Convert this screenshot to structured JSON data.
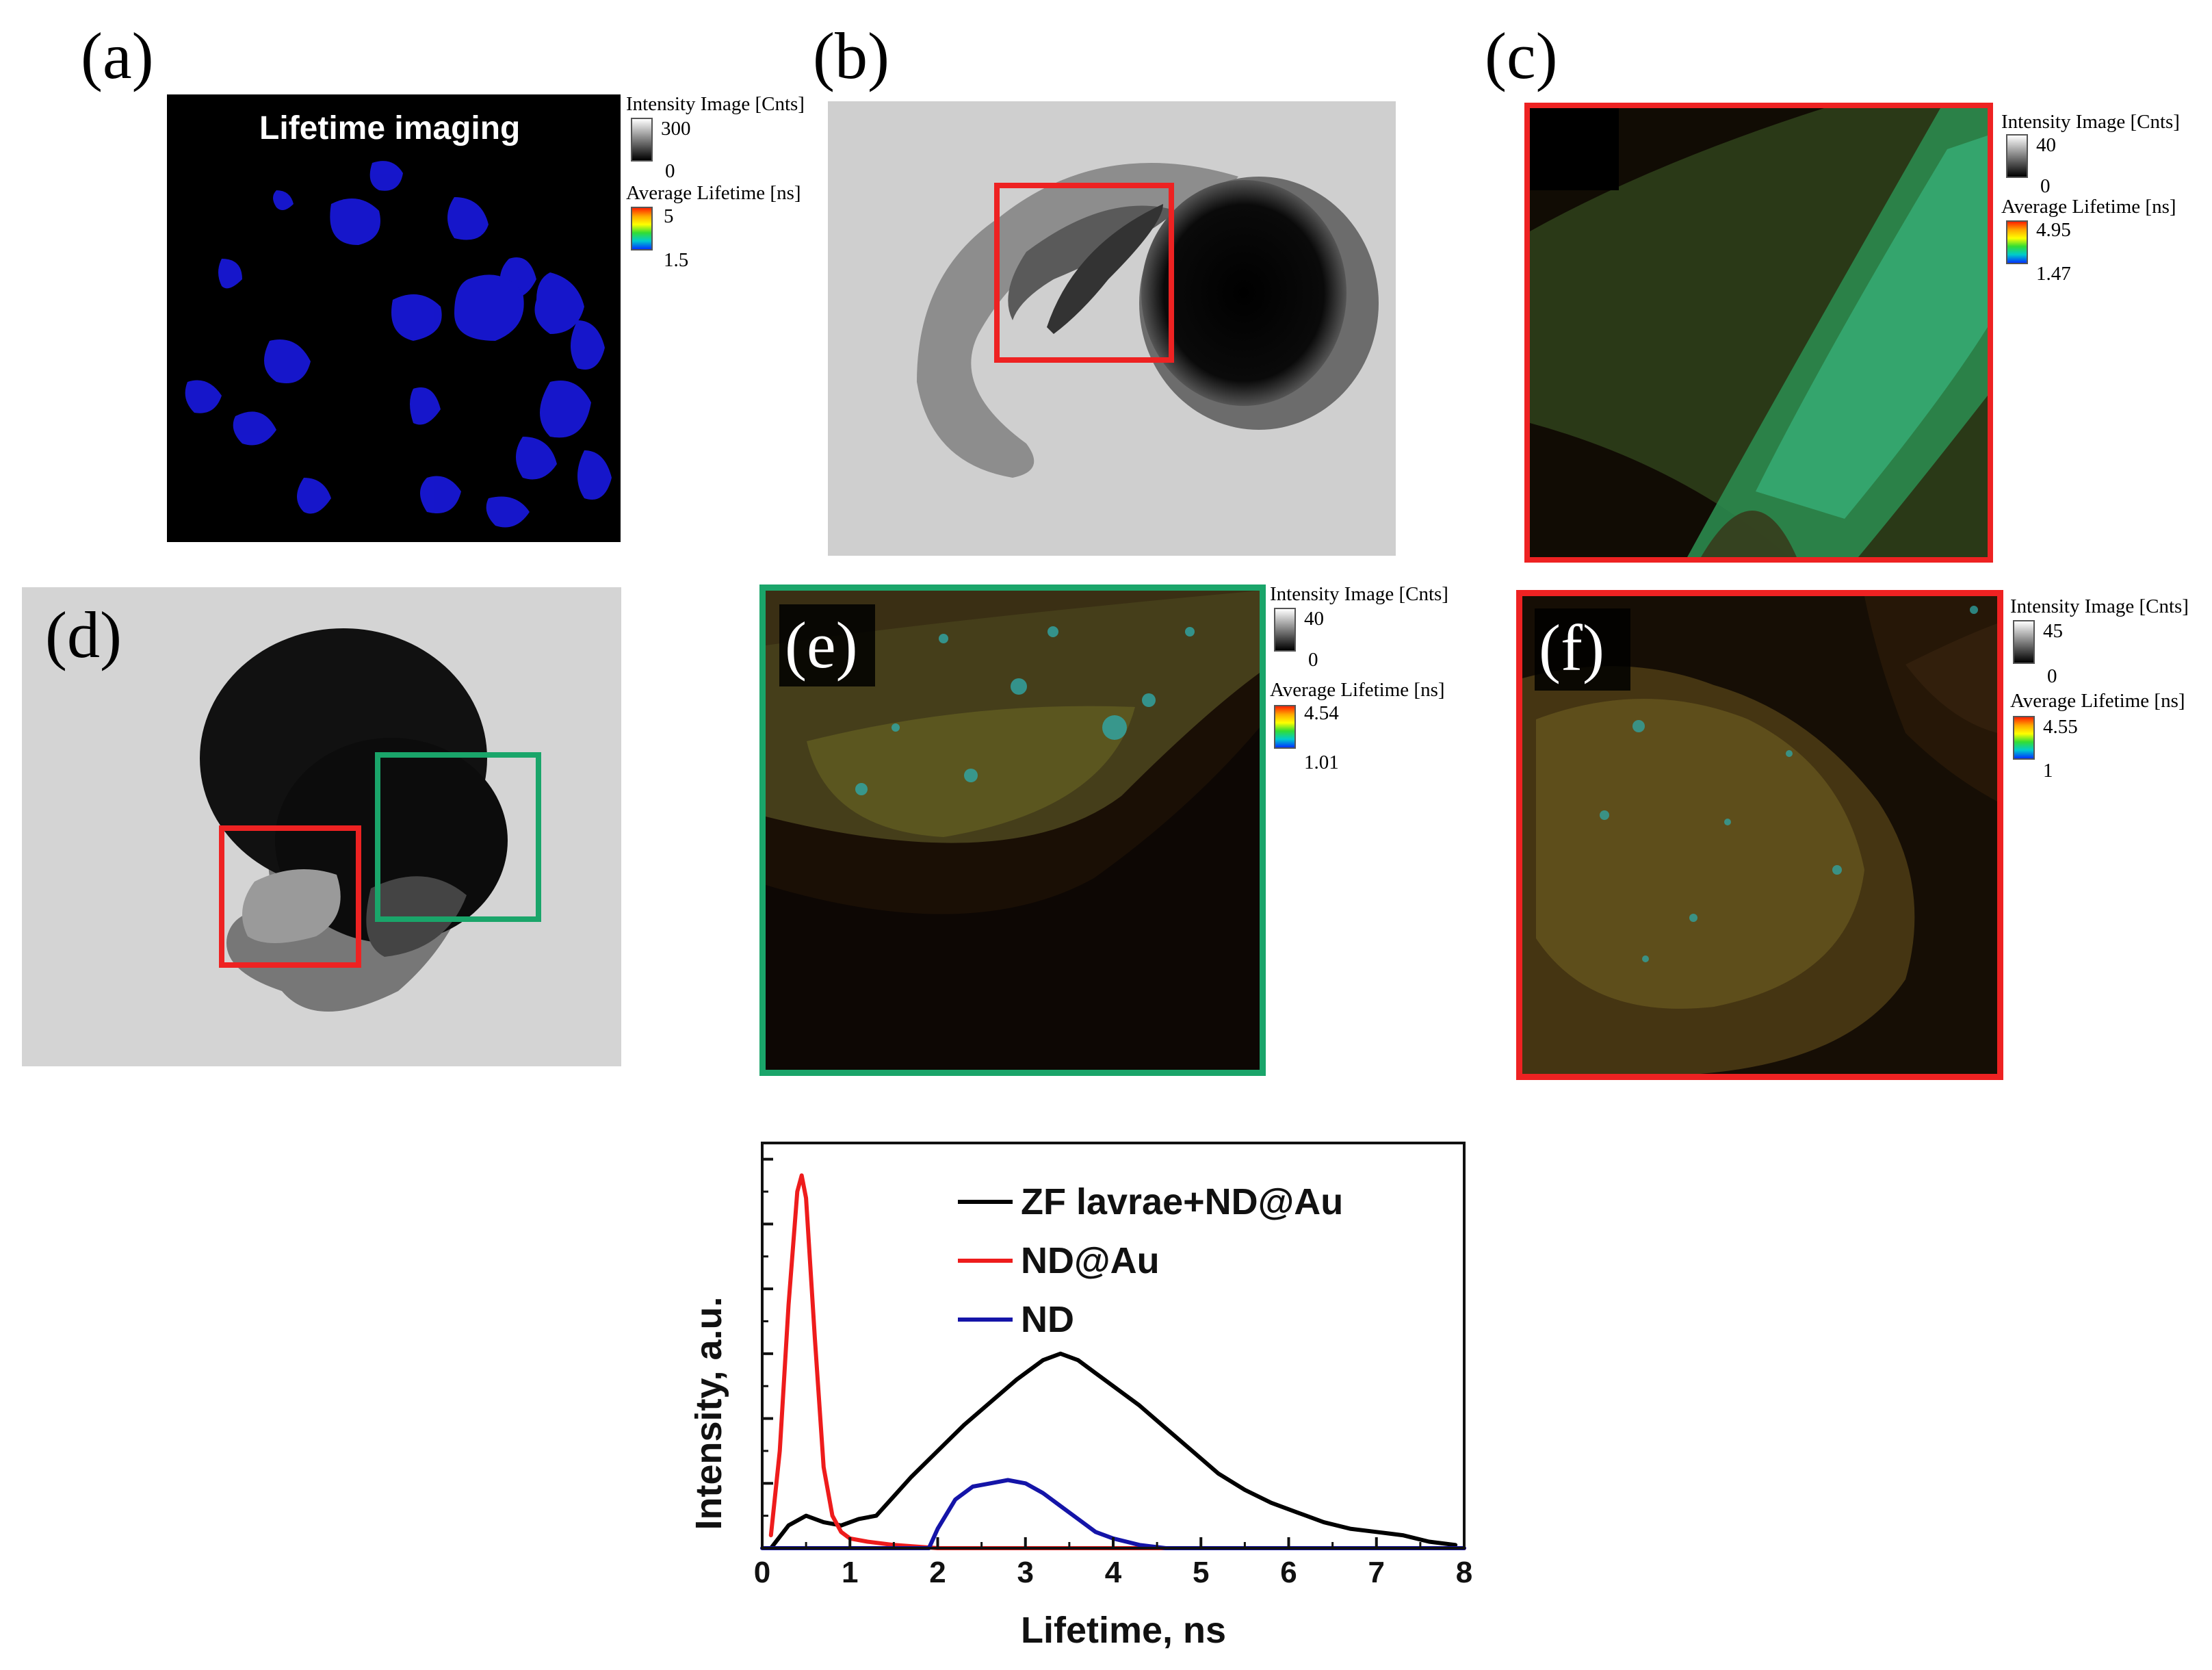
{
  "panels": {
    "a": {
      "letter": "(a)",
      "overlay": "Lifetime imaging",
      "cb": {
        "intensity_title": "Intensity Image [Cnts]",
        "intensity_max": "300",
        "intensity_min": "0",
        "lifetime_title": "Average Lifetime [ns]",
        "lifetime_max": "5",
        "lifetime_min": "1.5"
      }
    },
    "b": {
      "letter": "(b)"
    },
    "c": {
      "letter": "(c)",
      "cb": {
        "intensity_title": "Intensity Image [Cnts]",
        "intensity_max": "40",
        "intensity_min": "0",
        "lifetime_title": "Average Lifetime [ns]",
        "lifetime_max": "4.95",
        "lifetime_min": "1.47"
      }
    },
    "d": {
      "letter": "(d)"
    },
    "e": {
      "letter": "(e)",
      "cb": {
        "intensity_title": "Intensity Image [Cnts]",
        "intensity_max": "40",
        "intensity_min": "0",
        "lifetime_title": "Average Lifetime [ns]",
        "lifetime_max": "4.54",
        "lifetime_min": "1.01"
      }
    },
    "f": {
      "letter": "(f)",
      "cb": {
        "intensity_title": "Intensity Image [Cnts]",
        "intensity_max": "45",
        "intensity_min": "0",
        "lifetime_title": "Average Lifetime [ns]",
        "lifetime_max": "4.55",
        "lifetime_min": "1"
      }
    }
  },
  "colors": {
    "red_box": "#ee2222",
    "green_box": "#1aa56a",
    "lifetime_blue": "#1a1aff"
  },
  "chart_data": {
    "type": "line",
    "title": "",
    "xlabel": "Lifetime, ns",
    "ylabel": "Intensity, a.u.",
    "xlim": [
      0,
      8
    ],
    "ylim": [
      0,
      1.25
    ],
    "xticks": [
      "0",
      "1",
      "2",
      "3",
      "4",
      "5",
      "6",
      "7",
      "8"
    ],
    "y_tick_labels_shown": false,
    "legend_placement": "top-right",
    "series": [
      {
        "name": "ZF lavrae+ND@Au",
        "color": "#000000",
        "x": [
          0.1,
          0.3,
          0.5,
          0.7,
          0.9,
          1.1,
          1.3,
          1.5,
          1.7,
          2.0,
          2.3,
          2.6,
          2.9,
          3.2,
          3.4,
          3.6,
          3.8,
          4.0,
          4.3,
          4.6,
          4.9,
          5.2,
          5.5,
          5.8,
          6.1,
          6.4,
          6.7,
          7.0,
          7.3,
          7.6,
          7.9
        ],
        "y": [
          0.0,
          0.07,
          0.1,
          0.08,
          0.07,
          0.09,
          0.1,
          0.16,
          0.22,
          0.3,
          0.38,
          0.45,
          0.52,
          0.58,
          0.6,
          0.58,
          0.54,
          0.5,
          0.44,
          0.37,
          0.3,
          0.23,
          0.18,
          0.14,
          0.11,
          0.08,
          0.06,
          0.05,
          0.04,
          0.02,
          0.01
        ]
      },
      {
        "name": "ND@Au",
        "color": "#ee1c1c",
        "x": [
          0.1,
          0.2,
          0.3,
          0.4,
          0.45,
          0.5,
          0.6,
          0.7,
          0.8,
          0.9,
          1.0,
          1.2,
          1.5,
          2.0,
          3.0,
          5.0,
          8.0
        ],
        "y": [
          0.04,
          0.3,
          0.75,
          1.1,
          1.15,
          1.08,
          0.65,
          0.25,
          0.1,
          0.05,
          0.03,
          0.02,
          0.01,
          0.0,
          0.0,
          0.0,
          0.0
        ]
      },
      {
        "name": "ND",
        "color": "#1414a8",
        "x": [
          0.0,
          1.0,
          1.9,
          2.0,
          2.2,
          2.4,
          2.6,
          2.8,
          3.0,
          3.2,
          3.4,
          3.6,
          3.8,
          4.0,
          4.3,
          4.6,
          5.0,
          6.0,
          8.0
        ],
        "y": [
          0.0,
          0.0,
          0.0,
          0.06,
          0.15,
          0.19,
          0.2,
          0.21,
          0.2,
          0.17,
          0.13,
          0.09,
          0.05,
          0.03,
          0.01,
          0.0,
          0.0,
          0.0,
          0.0
        ]
      }
    ]
  }
}
